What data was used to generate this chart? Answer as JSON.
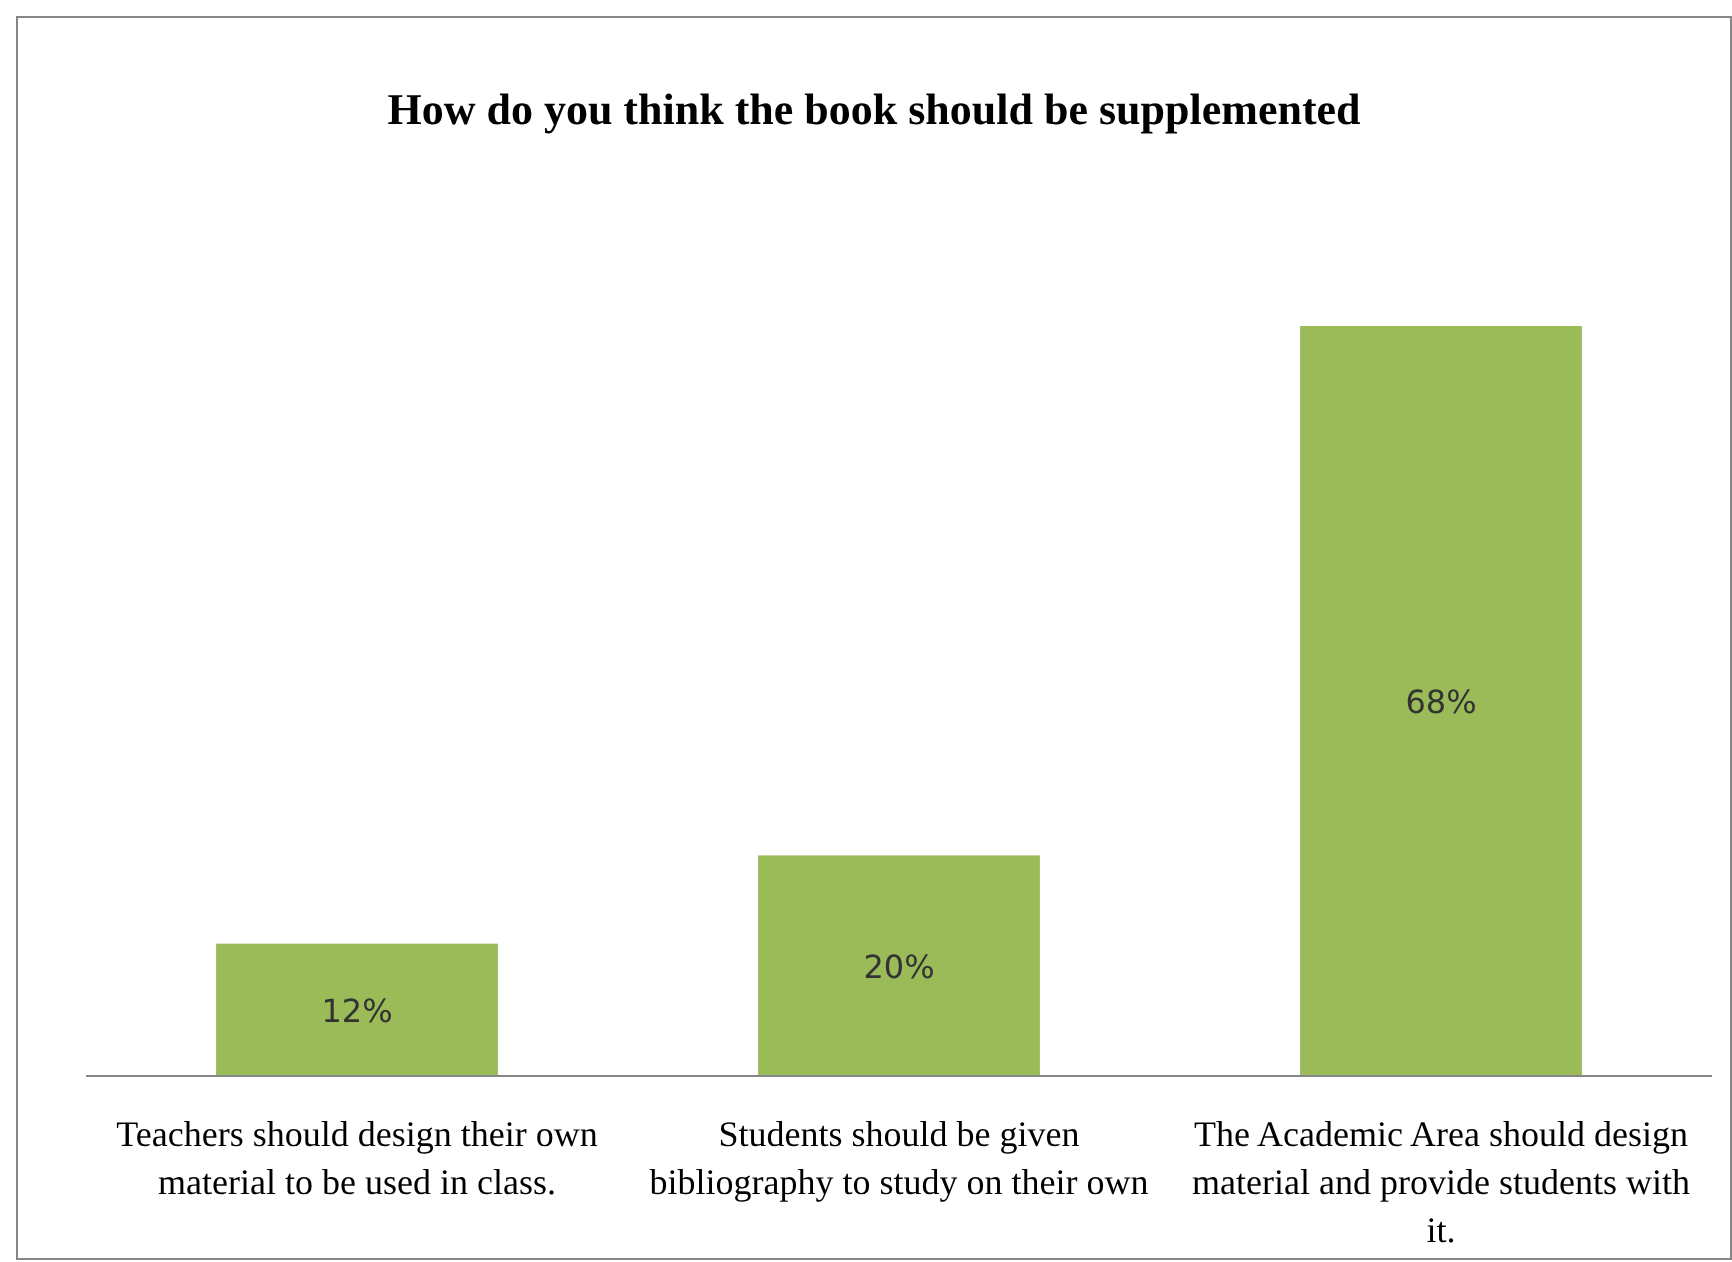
{
  "chart_data": {
    "type": "bar",
    "title": "How do you think the book should be supplemented",
    "categories": [
      "Teachers should design their own material to be used in class.",
      "Students should be given bibliography to study on their own",
      "The Academic Area should design material and provide students with it."
    ],
    "values": [
      12,
      20,
      68
    ],
    "value_labels": [
      "12%",
      "20%",
      "68%"
    ],
    "color": "#9bbb59"
  }
}
